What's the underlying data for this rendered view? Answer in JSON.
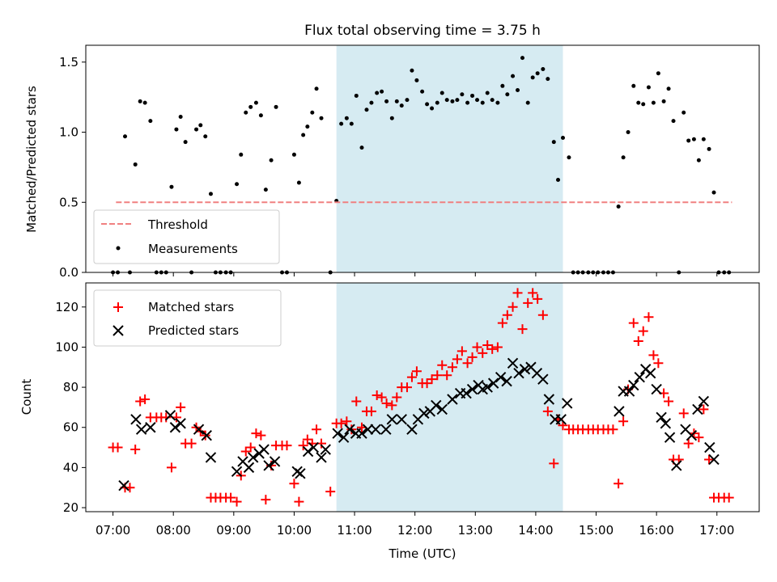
{
  "chart_data": {
    "type": "scatter",
    "title": "Flux total observing time = 3.75 h",
    "xlabel": "Time (UTC)",
    "x_ticks": [
      {
        "hour": 7,
        "label": "07:00"
      },
      {
        "hour": 8,
        "label": "08:00"
      },
      {
        "hour": 9,
        "label": "09:00"
      },
      {
        "hour": 10,
        "label": "10:00"
      },
      {
        "hour": 11,
        "label": "11:00"
      },
      {
        "hour": 12,
        "label": "12:00"
      },
      {
        "hour": 13,
        "label": "13:00"
      },
      {
        "hour": 14,
        "label": "14:00"
      },
      {
        "hour": 15,
        "label": "15:00"
      },
      {
        "hour": 16,
        "label": "16:00"
      },
      {
        "hour": 17,
        "label": "17:00"
      }
    ],
    "xlim": [
      6.55,
      17.7
    ],
    "colors": {
      "shade": "#add8e6",
      "threshold": "#f08080",
      "matched": "#ff0000",
      "predicted": "#000000",
      "measurement": "#000000"
    },
    "shaded_interval": [
      10.7,
      14.45
    ],
    "top": {
      "ylabel": "Matched/Predicted stars",
      "ylim": [
        0,
        1.62
      ],
      "yticks": [
        0.0,
        0.5,
        1.0,
        1.5
      ],
      "ytick_labels": [
        "0.0",
        "0.5",
        "1.0",
        "1.5"
      ],
      "threshold": {
        "label": "Threshold",
        "value": 0.5,
        "x_range": [
          7.05,
          17.25
        ]
      },
      "legend": [
        "Threshold",
        "Measurements"
      ],
      "measurements": [
        [
          7.0,
          0
        ],
        [
          7.08,
          0
        ],
        [
          7.2,
          0.97
        ],
        [
          7.28,
          0
        ],
        [
          7.37,
          0.77
        ],
        [
          7.45,
          1.22
        ],
        [
          7.53,
          1.21
        ],
        [
          7.62,
          1.08
        ],
        [
          7.72,
          0
        ],
        [
          7.8,
          0
        ],
        [
          7.88,
          0
        ],
        [
          7.97,
          0.61
        ],
        [
          8.05,
          1.02
        ],
        [
          8.12,
          1.11
        ],
        [
          8.2,
          0.93
        ],
        [
          8.3,
          0
        ],
        [
          8.38,
          1.02
        ],
        [
          8.45,
          1.05
        ],
        [
          8.53,
          0.97
        ],
        [
          8.62,
          0.56
        ],
        [
          8.7,
          0
        ],
        [
          8.78,
          0
        ],
        [
          8.87,
          0
        ],
        [
          8.95,
          0
        ],
        [
          9.05,
          0.63
        ],
        [
          9.12,
          0.84
        ],
        [
          9.2,
          1.14
        ],
        [
          9.28,
          1.18
        ],
        [
          9.37,
          1.21
        ],
        [
          9.45,
          1.12
        ],
        [
          9.53,
          0.59
        ],
        [
          9.62,
          0.8
        ],
        [
          9.7,
          1.18
        ],
        [
          9.8,
          0
        ],
        [
          9.88,
          0
        ],
        [
          10.0,
          0.84
        ],
        [
          10.08,
          0.64
        ],
        [
          10.15,
          0.98
        ],
        [
          10.22,
          1.04
        ],
        [
          10.3,
          1.14
        ],
        [
          10.37,
          1.31
        ],
        [
          10.45,
          1.1
        ],
        [
          10.6,
          0
        ],
        [
          10.7,
          0.51
        ],
        [
          10.78,
          1.06
        ],
        [
          10.87,
          1.1
        ],
        [
          10.95,
          1.06
        ],
        [
          11.03,
          1.26
        ],
        [
          11.12,
          0.89
        ],
        [
          11.2,
          1.16
        ],
        [
          11.28,
          1.21
        ],
        [
          11.37,
          1.28
        ],
        [
          11.45,
          1.29
        ],
        [
          11.53,
          1.22
        ],
        [
          11.62,
          1.1
        ],
        [
          11.7,
          1.22
        ],
        [
          11.78,
          1.19
        ],
        [
          11.87,
          1.23
        ],
        [
          11.95,
          1.44
        ],
        [
          12.03,
          1.37
        ],
        [
          12.12,
          1.29
        ],
        [
          12.2,
          1.2
        ],
        [
          12.28,
          1.17
        ],
        [
          12.37,
          1.21
        ],
        [
          12.45,
          1.28
        ],
        [
          12.53,
          1.23
        ],
        [
          12.62,
          1.22
        ],
        [
          12.7,
          1.23
        ],
        [
          12.78,
          1.27
        ],
        [
          12.87,
          1.21
        ],
        [
          12.95,
          1.26
        ],
        [
          13.03,
          1.23
        ],
        [
          13.12,
          1.21
        ],
        [
          13.2,
          1.28
        ],
        [
          13.28,
          1.23
        ],
        [
          13.37,
          1.21
        ],
        [
          13.45,
          1.33
        ],
        [
          13.53,
          1.27
        ],
        [
          13.62,
          1.4
        ],
        [
          13.7,
          1.3
        ],
        [
          13.78,
          1.53
        ],
        [
          13.87,
          1.21
        ],
        [
          13.95,
          1.39
        ],
        [
          14.03,
          1.42
        ],
        [
          14.12,
          1.45
        ],
        [
          14.2,
          1.38
        ],
        [
          14.3,
          0.93
        ],
        [
          14.37,
          0.66
        ],
        [
          14.45,
          0.96
        ],
        [
          14.55,
          0.82
        ],
        [
          14.62,
          0
        ],
        [
          14.7,
          0
        ],
        [
          14.78,
          0
        ],
        [
          14.87,
          0
        ],
        [
          14.95,
          0
        ],
        [
          15.03,
          0
        ],
        [
          15.12,
          0
        ],
        [
          15.2,
          0
        ],
        [
          15.28,
          0
        ],
        [
          15.37,
          0.47
        ],
        [
          15.45,
          0.82
        ],
        [
          15.53,
          1.0
        ],
        [
          15.62,
          1.33
        ],
        [
          15.7,
          1.21
        ],
        [
          15.78,
          1.2
        ],
        [
          15.87,
          1.32
        ],
        [
          15.95,
          1.21
        ],
        [
          16.03,
          1.42
        ],
        [
          16.12,
          1.22
        ],
        [
          16.2,
          1.31
        ],
        [
          16.28,
          1.08
        ],
        [
          16.37,
          0
        ],
        [
          16.45,
          1.14
        ],
        [
          16.53,
          0.94
        ],
        [
          16.62,
          0.95
        ],
        [
          16.7,
          0.8
        ],
        [
          16.78,
          0.95
        ],
        [
          16.87,
          0.88
        ],
        [
          16.95,
          0.57
        ],
        [
          17.03,
          0
        ],
        [
          17.12,
          0
        ],
        [
          17.2,
          0
        ]
      ]
    },
    "bottom": {
      "ylabel": "Count",
      "ylim": [
        18,
        132
      ],
      "yticks": [
        20,
        40,
        60,
        80,
        100,
        120
      ],
      "legend": [
        "Matched stars",
        "Predicted stars"
      ],
      "matched": [
        [
          7.0,
          50
        ],
        [
          7.08,
          50
        ],
        [
          7.2,
          30
        ],
        [
          7.28,
          30
        ],
        [
          7.37,
          49
        ],
        [
          7.45,
          73
        ],
        [
          7.53,
          74
        ],
        [
          7.62,
          65
        ],
        [
          7.72,
          65
        ],
        [
          7.8,
          65
        ],
        [
          7.88,
          65
        ],
        [
          7.97,
          40
        ],
        [
          8.05,
          65
        ],
        [
          8.12,
          70
        ],
        [
          8.2,
          52
        ],
        [
          8.3,
          52
        ],
        [
          8.38,
          60
        ],
        [
          8.45,
          58
        ],
        [
          8.53,
          56
        ],
        [
          8.62,
          25
        ],
        [
          8.7,
          25
        ],
        [
          8.78,
          25
        ],
        [
          8.87,
          25
        ],
        [
          8.95,
          25
        ],
        [
          9.05,
          23
        ],
        [
          9.12,
          36
        ],
        [
          9.2,
          48
        ],
        [
          9.28,
          50
        ],
        [
          9.37,
          57
        ],
        [
          9.45,
          56
        ],
        [
          9.53,
          24
        ],
        [
          9.62,
          41
        ],
        [
          9.7,
          51
        ],
        [
          9.8,
          51
        ],
        [
          9.88,
          51
        ],
        [
          10.0,
          32
        ],
        [
          10.08,
          23
        ],
        [
          10.15,
          51
        ],
        [
          10.22,
          54
        ],
        [
          10.3,
          52
        ],
        [
          10.37,
          59
        ],
        [
          10.45,
          52
        ],
        [
          10.6,
          28
        ],
        [
          10.7,
          62
        ],
        [
          10.78,
          62
        ],
        [
          10.87,
          63
        ],
        [
          10.95,
          59
        ],
        [
          11.03,
          73
        ],
        [
          11.12,
          60
        ],
        [
          11.2,
          68
        ],
        [
          11.28,
          68
        ],
        [
          11.37,
          76
        ],
        [
          11.45,
          75
        ],
        [
          11.53,
          72
        ],
        [
          11.62,
          71
        ],
        [
          11.7,
          75
        ],
        [
          11.78,
          80
        ],
        [
          11.87,
          80
        ],
        [
          11.95,
          85
        ],
        [
          12.03,
          88
        ],
        [
          12.12,
          82
        ],
        [
          12.2,
          82
        ],
        [
          12.28,
          84
        ],
        [
          12.37,
          86
        ],
        [
          12.45,
          91
        ],
        [
          12.53,
          86
        ],
        [
          12.62,
          90
        ],
        [
          12.7,
          94
        ],
        [
          12.78,
          98
        ],
        [
          12.87,
          92
        ],
        [
          12.95,
          95
        ],
        [
          13.03,
          100
        ],
        [
          13.12,
          97
        ],
        [
          13.2,
          101
        ],
        [
          13.28,
          99
        ],
        [
          13.37,
          100
        ],
        [
          13.45,
          112
        ],
        [
          13.53,
          116
        ],
        [
          13.62,
          120
        ],
        [
          13.7,
          127
        ],
        [
          13.78,
          109
        ],
        [
          13.87,
          122
        ],
        [
          13.95,
          127
        ],
        [
          14.03,
          124
        ],
        [
          14.12,
          116
        ],
        [
          14.2,
          68
        ],
        [
          14.3,
          42
        ],
        [
          14.37,
          64
        ],
        [
          14.45,
          61
        ],
        [
          14.55,
          59
        ],
        [
          14.62,
          59
        ],
        [
          14.7,
          59
        ],
        [
          14.78,
          59
        ],
        [
          14.87,
          59
        ],
        [
          14.95,
          59
        ],
        [
          15.03,
          59
        ],
        [
          15.12,
          59
        ],
        [
          15.2,
          59
        ],
        [
          15.28,
          59
        ],
        [
          15.37,
          32
        ],
        [
          15.45,
          63
        ],
        [
          15.53,
          79
        ],
        [
          15.62,
          112
        ],
        [
          15.7,
          103
        ],
        [
          15.78,
          108
        ],
        [
          15.87,
          115
        ],
        [
          15.95,
          96
        ],
        [
          16.03,
          92
        ],
        [
          16.12,
          77
        ],
        [
          16.2,
          73
        ],
        [
          16.28,
          44
        ],
        [
          16.37,
          44
        ],
        [
          16.45,
          67
        ],
        [
          16.53,
          52
        ],
        [
          16.62,
          57
        ],
        [
          16.7,
          55
        ],
        [
          16.78,
          69
        ],
        [
          16.87,
          44
        ],
        [
          16.95,
          25
        ],
        [
          17.03,
          25
        ],
        [
          17.12,
          25
        ],
        [
          17.2,
          25
        ]
      ],
      "predicted": [
        [
          7.18,
          31
        ],
        [
          7.38,
          64
        ],
        [
          7.47,
          59
        ],
        [
          7.62,
          60
        ],
        [
          7.95,
          66
        ],
        [
          8.03,
          60
        ],
        [
          8.12,
          62
        ],
        [
          8.42,
          59
        ],
        [
          8.55,
          56
        ],
        [
          8.62,
          45
        ],
        [
          9.05,
          38
        ],
        [
          9.15,
          43
        ],
        [
          9.25,
          40
        ],
        [
          9.32,
          45
        ],
        [
          9.42,
          47
        ],
        [
          9.5,
          49
        ],
        [
          9.58,
          41
        ],
        [
          9.68,
          43
        ],
        [
          10.05,
          38
        ],
        [
          10.1,
          37
        ],
        [
          10.23,
          48
        ],
        [
          10.32,
          50
        ],
        [
          10.45,
          45
        ],
        [
          10.52,
          49
        ],
        [
          10.72,
          57
        ],
        [
          10.82,
          55
        ],
        [
          10.92,
          59
        ],
        [
          11.02,
          57
        ],
        [
          11.12,
          57
        ],
        [
          11.22,
          59
        ],
        [
          11.35,
          59
        ],
        [
          11.52,
          59
        ],
        [
          11.62,
          64
        ],
        [
          11.78,
          64
        ],
        [
          11.95,
          59
        ],
        [
          12.05,
          64
        ],
        [
          12.15,
          67
        ],
        [
          12.25,
          68
        ],
        [
          12.35,
          71
        ],
        [
          12.45,
          69
        ],
        [
          12.62,
          74
        ],
        [
          12.75,
          77
        ],
        [
          12.85,
          77
        ],
        [
          12.95,
          79
        ],
        [
          13.05,
          81
        ],
        [
          13.12,
          79
        ],
        [
          13.2,
          80
        ],
        [
          13.3,
          82
        ],
        [
          13.42,
          85
        ],
        [
          13.52,
          83
        ],
        [
          13.62,
          92
        ],
        [
          13.72,
          87
        ],
        [
          13.82,
          89
        ],
        [
          13.92,
          90
        ],
        [
          14.02,
          87
        ],
        [
          14.12,
          84
        ],
        [
          14.22,
          74
        ],
        [
          14.32,
          64
        ],
        [
          14.42,
          64
        ],
        [
          14.52,
          72
        ],
        [
          15.38,
          68
        ],
        [
          15.45,
          78
        ],
        [
          15.55,
          78
        ],
        [
          15.62,
          81
        ],
        [
          15.72,
          85
        ],
        [
          15.82,
          89
        ],
        [
          15.9,
          87
        ],
        [
          16.0,
          79
        ],
        [
          16.08,
          65
        ],
        [
          16.15,
          62
        ],
        [
          16.22,
          55
        ],
        [
          16.33,
          41
        ],
        [
          16.48,
          59
        ],
        [
          16.58,
          56
        ],
        [
          16.68,
          69
        ],
        [
          16.78,
          73
        ],
        [
          16.88,
          50
        ],
        [
          16.95,
          44
        ]
      ]
    }
  }
}
